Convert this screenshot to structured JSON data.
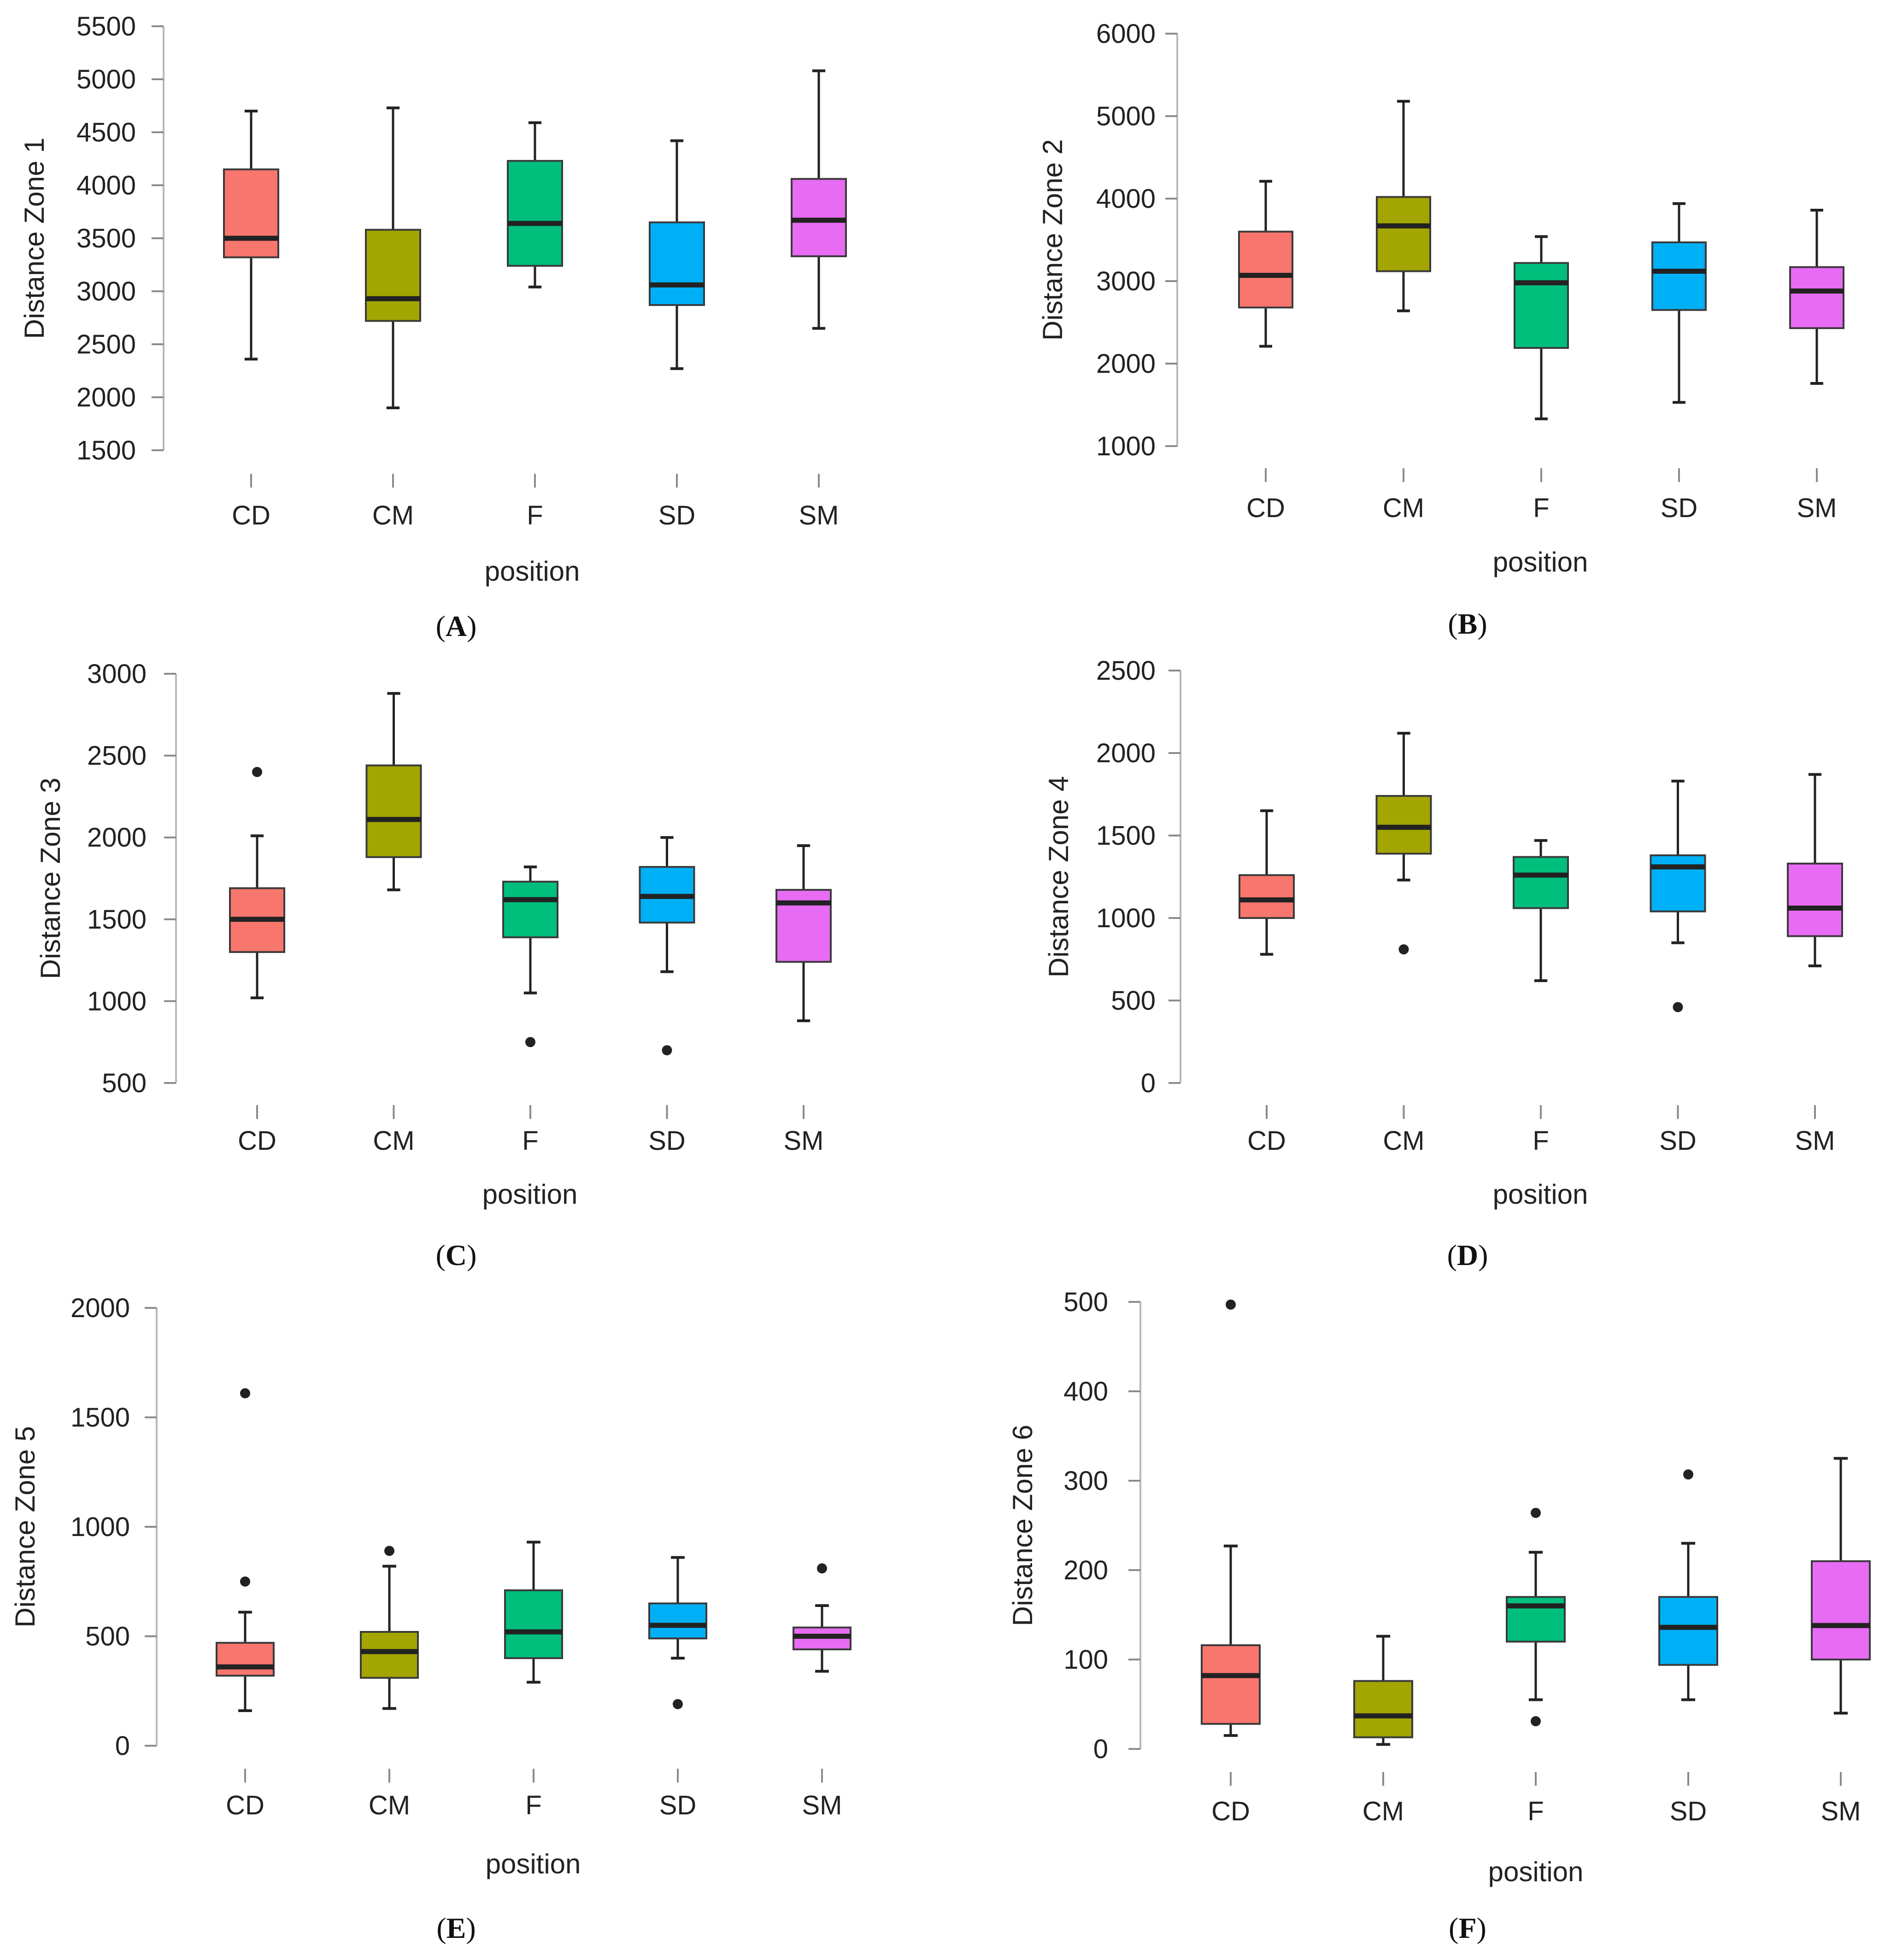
{
  "figure": {
    "category_colors": {
      "CD": "#F8766D",
      "CM": "#A3A500",
      "F": "#00BF7D",
      "SD": "#00B0F6",
      "SM": "#E76BF3"
    },
    "whisker_color": "#222222",
    "median_color": "#222222"
  },
  "chart_data": [
    {
      "type": "box",
      "panel_open": "(",
      "panel_letter": "A",
      "panel_close": ")",
      "xlabel": "position",
      "ylabel": "Distance Zone 1",
      "categories": [
        "CD",
        "CM",
        "F",
        "SD",
        "SM"
      ],
      "ylim": [
        1500,
        5500
      ],
      "yticks": [
        1500,
        2000,
        2500,
        3000,
        3500,
        4000,
        4500,
        5000,
        5500
      ],
      "boxes": [
        {
          "category": "CD",
          "min": 2360,
          "q1": 3320,
          "median": 3500,
          "q3": 4150,
          "max": 4700,
          "outliers": []
        },
        {
          "category": "CM",
          "min": 1900,
          "q1": 2720,
          "median": 2930,
          "q3": 3580,
          "max": 4730,
          "outliers": []
        },
        {
          "category": "F",
          "min": 3040,
          "q1": 3240,
          "median": 3640,
          "q3": 4230,
          "max": 4590,
          "outliers": []
        },
        {
          "category": "SD",
          "min": 2270,
          "q1": 2870,
          "median": 3060,
          "q3": 3650,
          "max": 4420,
          "outliers": []
        },
        {
          "category": "SM",
          "min": 2650,
          "q1": 3330,
          "median": 3670,
          "q3": 4060,
          "max": 5080,
          "outliers": []
        }
      ]
    },
    {
      "type": "box",
      "panel_open": "(",
      "panel_letter": "B",
      "panel_close": ")",
      "xlabel": "position",
      "ylabel": "Distance Zone 2",
      "categories": [
        "CD",
        "CM",
        "F",
        "SD",
        "SM"
      ],
      "ylim": [
        1000,
        6000
      ],
      "yticks": [
        1000,
        2000,
        3000,
        4000,
        5000,
        6000
      ],
      "boxes": [
        {
          "category": "CD",
          "min": 2210,
          "q1": 2680,
          "median": 3070,
          "q3": 3600,
          "max": 4210,
          "outliers": []
        },
        {
          "category": "CM",
          "min": 2640,
          "q1": 3120,
          "median": 3670,
          "q3": 4020,
          "max": 5180,
          "outliers": []
        },
        {
          "category": "F",
          "min": 1330,
          "q1": 2190,
          "median": 2980,
          "q3": 3220,
          "max": 3540,
          "outliers": []
        },
        {
          "category": "SD",
          "min": 1530,
          "q1": 2650,
          "median": 3120,
          "q3": 3470,
          "max": 3940,
          "outliers": []
        },
        {
          "category": "SM",
          "min": 1760,
          "q1": 2430,
          "median": 2880,
          "q3": 3170,
          "max": 3860,
          "outliers": []
        }
      ]
    },
    {
      "type": "box",
      "panel_open": "(",
      "panel_letter": "C",
      "panel_close": ")",
      "xlabel": "position",
      "ylabel": "Distance Zone 3",
      "categories": [
        "CD",
        "CM",
        "F",
        "SD",
        "SM"
      ],
      "ylim": [
        500,
        3000
      ],
      "yticks": [
        500,
        1000,
        1500,
        2000,
        2500,
        3000
      ],
      "boxes": [
        {
          "category": "CD",
          "min": 1020,
          "q1": 1300,
          "median": 1500,
          "q3": 1690,
          "max": 2010,
          "outliers": [
            2400
          ]
        },
        {
          "category": "CM",
          "min": 1680,
          "q1": 1880,
          "median": 2110,
          "q3": 2440,
          "max": 2880,
          "outliers": []
        },
        {
          "category": "F",
          "min": 1050,
          "q1": 1390,
          "median": 1620,
          "q3": 1730,
          "max": 1820,
          "outliers": [
            750
          ]
        },
        {
          "category": "SD",
          "min": 1180,
          "q1": 1480,
          "median": 1640,
          "q3": 1820,
          "max": 2000,
          "outliers": [
            700
          ]
        },
        {
          "category": "SM",
          "min": 880,
          "q1": 1240,
          "median": 1600,
          "q3": 1680,
          "max": 1950,
          "outliers": []
        }
      ]
    },
    {
      "type": "box",
      "panel_open": "(",
      "panel_letter": "D",
      "panel_close": ")",
      "xlabel": "position",
      "ylabel": "Distance Zone 4",
      "categories": [
        "CD",
        "CM",
        "F",
        "SD",
        "SM"
      ],
      "ylim": [
        0,
        2500
      ],
      "yticks": [
        0,
        500,
        1000,
        1500,
        2000,
        2500
      ],
      "boxes": [
        {
          "category": "CD",
          "min": 780,
          "q1": 1000,
          "median": 1110,
          "q3": 1260,
          "max": 1650,
          "outliers": []
        },
        {
          "category": "CM",
          "min": 1230,
          "q1": 1390,
          "median": 1550,
          "q3": 1740,
          "max": 2120,
          "outliers": [
            810
          ]
        },
        {
          "category": "F",
          "min": 620,
          "q1": 1060,
          "median": 1260,
          "q3": 1370,
          "max": 1470,
          "outliers": []
        },
        {
          "category": "SD",
          "min": 850,
          "q1": 1040,
          "median": 1310,
          "q3": 1380,
          "max": 1830,
          "outliers": [
            460
          ]
        },
        {
          "category": "SM",
          "min": 710,
          "q1": 890,
          "median": 1060,
          "q3": 1330,
          "max": 1870,
          "outliers": []
        }
      ]
    },
    {
      "type": "box",
      "panel_open": "(",
      "panel_letter": "E",
      "panel_close": ")",
      "xlabel": "position",
      "ylabel": "Distance Zone 5",
      "categories": [
        "CD",
        "CM",
        "F",
        "SD",
        "SM"
      ],
      "ylim": [
        0,
        2000
      ],
      "yticks": [
        0,
        500,
        1000,
        1500,
        2000
      ],
      "boxes": [
        {
          "category": "CD",
          "min": 160,
          "q1": 320,
          "median": 360,
          "q3": 470,
          "max": 610,
          "outliers": [
            750,
            1610
          ]
        },
        {
          "category": "CM",
          "min": 170,
          "q1": 310,
          "median": 430,
          "q3": 520,
          "max": 820,
          "outliers": [
            890
          ]
        },
        {
          "category": "F",
          "min": 290,
          "q1": 400,
          "median": 520,
          "q3": 710,
          "max": 930,
          "outliers": []
        },
        {
          "category": "SD",
          "min": 400,
          "q1": 490,
          "median": 550,
          "q3": 650,
          "max": 860,
          "outliers": [
            190
          ]
        },
        {
          "category": "SM",
          "min": 340,
          "q1": 440,
          "median": 500,
          "q3": 540,
          "max": 640,
          "outliers": [
            810
          ]
        }
      ]
    },
    {
      "type": "box",
      "panel_open": "(",
      "panel_letter": "F",
      "panel_close": ")",
      "xlabel": "position",
      "ylabel": "Distance Zone 6",
      "categories": [
        "CD",
        "CM",
        "F",
        "SD",
        "SM"
      ],
      "ylim": [
        0,
        500
      ],
      "yticks": [
        0,
        100,
        200,
        300,
        400,
        500
      ],
      "boxes": [
        {
          "category": "CD",
          "min": 15,
          "q1": 28,
          "median": 82,
          "q3": 116,
          "max": 227,
          "outliers": [
            497
          ]
        },
        {
          "category": "CM",
          "min": 5,
          "q1": 13,
          "median": 37,
          "q3": 76,
          "max": 126,
          "outliers": []
        },
        {
          "category": "F",
          "min": 55,
          "q1": 120,
          "median": 160,
          "q3": 170,
          "max": 220,
          "outliers": [
            31,
            264
          ]
        },
        {
          "category": "SD",
          "min": 55,
          "q1": 94,
          "median": 136,
          "q3": 170,
          "max": 230,
          "outliers": [
            307
          ]
        },
        {
          "category": "SM",
          "min": 40,
          "q1": 100,
          "median": 138,
          "q3": 210,
          "max": 325,
          "outliers": []
        }
      ]
    }
  ]
}
